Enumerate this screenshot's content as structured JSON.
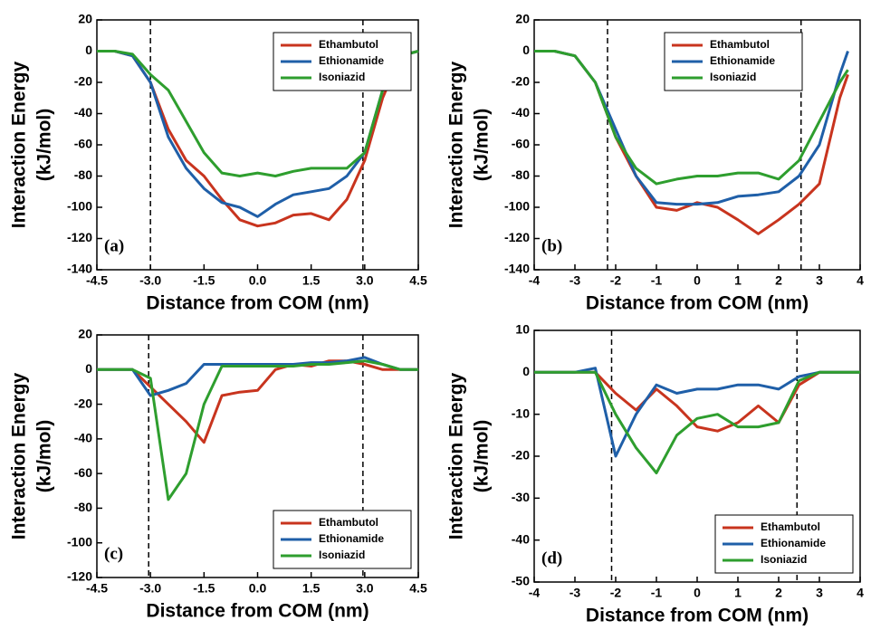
{
  "chart_data": [
    {
      "type": "line",
      "panel_label": "(a)",
      "xlabel": "Distance from COM (nm)",
      "ylabel": [
        "Interaction Energy",
        "(kJ/mol)"
      ],
      "xlim": [
        -4.5,
        4.5
      ],
      "xticks": [
        -4.5,
        {
          "value": -3,
          "label": "-3.0"
        },
        -1.5,
        {
          "value": 0,
          "label": "0.0"
        },
        1.5,
        {
          "value": 3,
          "label": "3.0"
        },
        4.5
      ],
      "ylim": [
        -140,
        20
      ],
      "yticks": [
        -140,
        -120,
        -100,
        -80,
        -60,
        -40,
        -20,
        0,
        20
      ],
      "reference_lines": [
        -3.0,
        2.95
      ],
      "legend": "upper right",
      "x": [
        -4.5,
        -4,
        -3.5,
        -3,
        -2.5,
        -2,
        -1.5,
        -1,
        -0.5,
        0,
        0.5,
        1,
        1.5,
        2,
        2.5,
        3,
        3.5,
        4,
        4.5
      ],
      "series": [
        {
          "name": "Ethambutol",
          "color": "#c8341e",
          "values": [
            0,
            0,
            -3,
            -20,
            -50,
            -70,
            -80,
            -95,
            -108,
            -112,
            -110,
            -105,
            -104,
            -108,
            -95,
            -70,
            -30,
            -3,
            0
          ]
        },
        {
          "name": "Ethionamide",
          "color": "#1f5fa8",
          "values": [
            0,
            0,
            -3,
            -20,
            -55,
            -75,
            -88,
            -97,
            -100,
            -106,
            -98,
            -92,
            -90,
            -88,
            -80,
            -65,
            -25,
            -3,
            0
          ]
        },
        {
          "name": "Isoniazid",
          "color": "#2e9e2e",
          "values": [
            0,
            0,
            -2,
            -15,
            -25,
            -45,
            -65,
            -78,
            -80,
            -78,
            -80,
            -77,
            -75,
            -75,
            -75,
            -65,
            -25,
            -3,
            0
          ]
        }
      ]
    },
    {
      "type": "line",
      "panel_label": "(b)",
      "xlabel": "Distance from COM (nm)",
      "ylabel": [
        "Interaction Energy",
        "(kJ/mol)"
      ],
      "xlim": [
        -4,
        4
      ],
      "xticks": [
        -4,
        -3,
        -2,
        -1,
        0,
        1,
        2,
        3,
        4
      ],
      "ylim": [
        -140,
        20
      ],
      "yticks": [
        -140,
        -120,
        -100,
        -80,
        -60,
        -40,
        -20,
        0,
        20
      ],
      "reference_lines": [
        -2.2,
        2.55
      ],
      "legend": "upper center",
      "x": [
        -4,
        -3.5,
        -3,
        -2.5,
        -2,
        -1.5,
        -1,
        -0.5,
        0,
        0.5,
        1,
        1.5,
        2,
        2.5,
        3,
        3.5,
        3.7
      ],
      "series": [
        {
          "name": "Ethambutol",
          "color": "#c8341e",
          "values": [
            0,
            0,
            -3,
            -20,
            -55,
            -80,
            -100,
            -102,
            -97,
            -100,
            -108,
            -117,
            -108,
            -98,
            -85,
            -30,
            -15
          ]
        },
        {
          "name": "Ethionamide",
          "color": "#1f5fa8",
          "values": [
            0,
            0,
            -3,
            -20,
            -50,
            -80,
            -97,
            -98,
            -98,
            -97,
            -93,
            -92,
            -90,
            -80,
            -60,
            -15,
            0
          ]
        },
        {
          "name": "Isoniazid",
          "color": "#2e9e2e",
          "values": [
            0,
            0,
            -3,
            -20,
            -55,
            -75,
            -85,
            -82,
            -80,
            -80,
            -78,
            -78,
            -82,
            -70,
            -45,
            -20,
            -12
          ]
        }
      ]
    },
    {
      "type": "line",
      "panel_label": "(c)",
      "xlabel": "Distance from COM (nm)",
      "ylabel": [
        "Interaction Energy",
        "(kJ/mol)"
      ],
      "xlim": [
        -4.5,
        4.5
      ],
      "xticks": [
        -4.5,
        {
          "value": -3,
          "label": "-3.0"
        },
        -1.5,
        {
          "value": 0,
          "label": "0.0"
        },
        1.5,
        {
          "value": 3,
          "label": "3.0"
        },
        4.5
      ],
      "ylim": [
        -120,
        20
      ],
      "yticks": [
        -120,
        -100,
        -80,
        -60,
        -40,
        -20,
        0,
        20
      ],
      "reference_lines": [
        -3.05,
        2.95
      ],
      "legend": "lower right",
      "x": [
        -4.5,
        -4,
        -3.5,
        -3,
        -2.5,
        -2,
        -1.5,
        -1,
        -0.5,
        0,
        0.5,
        1,
        1.5,
        2,
        2.5,
        3,
        3.5,
        4,
        4.5
      ],
      "series": [
        {
          "name": "Ethambutol",
          "color": "#c8341e",
          "values": [
            0,
            0,
            0,
            -10,
            -20,
            -30,
            -42,
            -15,
            -13,
            -12,
            0,
            3,
            2,
            5,
            5,
            3,
            0,
            0,
            0
          ]
        },
        {
          "name": "Ethionamide",
          "color": "#1f5fa8",
          "values": [
            0,
            0,
            0,
            -15,
            -12,
            -8,
            3,
            3,
            3,
            3,
            3,
            3,
            4,
            4,
            5,
            7,
            3,
            0,
            0
          ]
        },
        {
          "name": "Isoniazid",
          "color": "#2e9e2e",
          "values": [
            0,
            0,
            0,
            -5,
            -75,
            -60,
            -20,
            2,
            2,
            2,
            2,
            2,
            3,
            3,
            4,
            5,
            3,
            0,
            0
          ]
        }
      ]
    },
    {
      "type": "line",
      "panel_label": "(d)",
      "xlabel": "Distance from COM (nm)",
      "ylabel": [
        "Interaction Energy",
        "(kJ/mol)"
      ],
      "xlim": [
        -4,
        4
      ],
      "xticks": [
        -4,
        -3,
        -2,
        -1,
        0,
        1,
        2,
        3,
        4
      ],
      "ylim": [
        -50,
        10
      ],
      "yticks": [
        -50,
        -40,
        -30,
        -20,
        -10,
        0,
        10
      ],
      "reference_lines": [
        -2.1,
        2.45
      ],
      "legend": "lower right",
      "x": [
        -4,
        -3.5,
        -3,
        -2.5,
        -2,
        -1.5,
        -1,
        -0.5,
        0,
        0.5,
        1,
        1.5,
        2,
        2.5,
        3,
        3.5,
        4
      ],
      "series": [
        {
          "name": "Ethambutol",
          "color": "#c8341e",
          "values": [
            0,
            0,
            0,
            0,
            -5,
            -9,
            -4,
            -8,
            -13,
            -14,
            -12,
            -8,
            -12,
            -3,
            0,
            0,
            0
          ]
        },
        {
          "name": "Ethionamide",
          "color": "#1f5fa8",
          "values": [
            0,
            0,
            0,
            1,
            -20,
            -10,
            -3,
            -5,
            -4,
            -4,
            -3,
            -3,
            -4,
            -1,
            0,
            0,
            0
          ]
        },
        {
          "name": "Isoniazid",
          "color": "#2e9e2e",
          "values": [
            0,
            0,
            0,
            0,
            -10,
            -18,
            -24,
            -15,
            -11,
            -10,
            -13,
            -13,
            -12,
            -2,
            0,
            0,
            0
          ]
        }
      ]
    }
  ]
}
